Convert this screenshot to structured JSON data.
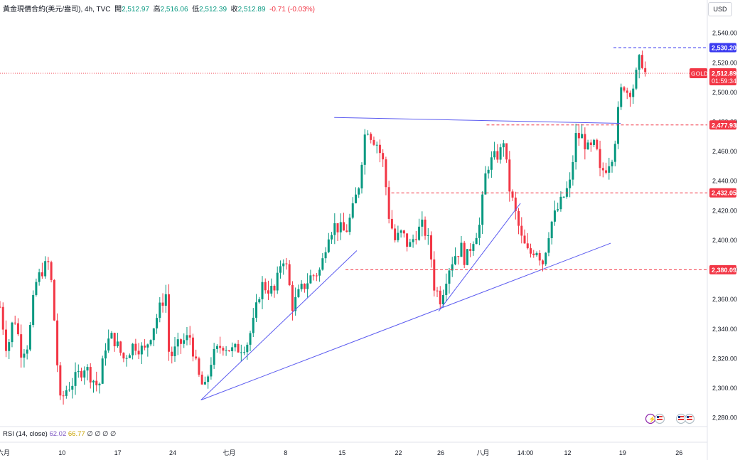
{
  "header": {
    "symbol": "黃金現價合約(美元/盎司)",
    "interval": "4h",
    "source": "TVC",
    "open_label": "開",
    "open": "2,512.97",
    "high_label": "高",
    "high": "2,516.06",
    "low_label": "低",
    "low": "2,512.39",
    "close_label": "收",
    "close": "2,512.89",
    "change": "-0.71 (-0.03%)"
  },
  "currency_button": "USD",
  "rsi": {
    "label": "RSI (14, close)",
    "value1": "62.02",
    "value2": "66.77",
    "dots": "∅ ∅ ∅ ∅"
  },
  "colors": {
    "up": "#089981",
    "down": "#f23645",
    "trend": "#5b5bf0",
    "price_tag": "#f23645",
    "high_tag": "#3c3cf0"
  },
  "icons": [
    "flash-icon",
    "us-flag-icon",
    "us-flag-icon",
    "us-flag-icon"
  ],
  "chart_data": {
    "type": "candlestick",
    "y_ticks": [
      "2,540.00",
      "2,520.00",
      "2,500.00",
      "2,480.00",
      "2,460.00",
      "2,440.00",
      "2,420.00",
      "2,400.00",
      "2,380.00",
      "2,360.00",
      "2,340.00",
      "2,320.00",
      "2,300.00",
      "2,280.00"
    ],
    "ylim": [
      2275,
      2548
    ],
    "x_ticks": [
      "六月",
      "10",
      "17",
      "24",
      "七月",
      "8",
      "15",
      "22",
      "26",
      "八月",
      "14:00",
      "12",
      "19",
      "26"
    ],
    "current_price": {
      "symbol": "GOLD",
      "value": 2512.89,
      "label": "2,512.89",
      "countdown": "01:59:34"
    },
    "levels": [
      {
        "value": 2530.2,
        "label": "2,530.20",
        "style": "high"
      },
      {
        "value": 2477.93,
        "label": "2,477.93",
        "style": "red"
      },
      {
        "value": 2432.05,
        "label": "2,432.05",
        "style": "red"
      },
      {
        "value": 2380.09,
        "label": "2,380.09",
        "style": "red"
      }
    ],
    "trendlines": [
      {
        "from": [
          0.285,
          2292
        ],
        "to": [
          0.506,
          2393
        ]
      },
      {
        "from": [
          0.285,
          2292
        ],
        "to": [
          0.866,
          2398
        ]
      },
      {
        "from": [
          0.622,
          2352
        ],
        "to": [
          0.738,
          2425
        ]
      },
      {
        "from": [
          0.474,
          2483
        ],
        "to": [
          0.88,
          2479
        ]
      }
    ],
    "close_path": [
      [
        0.0,
        2355
      ],
      [
        0.01,
        2325
      ],
      [
        0.02,
        2350
      ],
      [
        0.03,
        2325
      ],
      [
        0.04,
        2330
      ],
      [
        0.05,
        2370
      ],
      [
        0.06,
        2380
      ],
      [
        0.07,
        2385
      ],
      [
        0.075,
        2360
      ],
      [
        0.085,
        2290
      ],
      [
        0.095,
        2300
      ],
      [
        0.105,
        2305
      ],
      [
        0.12,
        2315
      ],
      [
        0.14,
        2300
      ],
      [
        0.15,
        2330
      ],
      [
        0.16,
        2335
      ],
      [
        0.175,
        2320
      ],
      [
        0.19,
        2330
      ],
      [
        0.205,
        2325
      ],
      [
        0.22,
        2345
      ],
      [
        0.235,
        2365
      ],
      [
        0.24,
        2320
      ],
      [
        0.255,
        2330
      ],
      [
        0.27,
        2335
      ],
      [
        0.28,
        2310
      ],
      [
        0.29,
        2298
      ],
      [
        0.3,
        2320
      ],
      [
        0.315,
        2330
      ],
      [
        0.33,
        2325
      ],
      [
        0.35,
        2330
      ],
      [
        0.36,
        2345
      ],
      [
        0.37,
        2370
      ],
      [
        0.39,
        2365
      ],
      [
        0.4,
        2390
      ],
      [
        0.405,
        2385
      ],
      [
        0.415,
        2355
      ],
      [
        0.425,
        2365
      ],
      [
        0.44,
        2375
      ],
      [
        0.455,
        2380
      ],
      [
        0.465,
        2405
      ],
      [
        0.475,
        2410
      ],
      [
        0.49,
        2405
      ],
      [
        0.5,
        2420
      ],
      [
        0.51,
        2440
      ],
      [
        0.515,
        2465
      ],
      [
        0.52,
        2478
      ],
      [
        0.525,
        2472
      ],
      [
        0.535,
        2465
      ],
      [
        0.545,
        2450
      ],
      [
        0.55,
        2420
      ],
      [
        0.56,
        2400
      ],
      [
        0.57,
        2405
      ],
      [
        0.58,
        2395
      ],
      [
        0.59,
        2405
      ],
      [
        0.6,
        2410
      ],
      [
        0.61,
        2395
      ],
      [
        0.615,
        2370
      ],
      [
        0.625,
        2360
      ],
      [
        0.635,
        2380
      ],
      [
        0.645,
        2390
      ],
      [
        0.655,
        2395
      ],
      [
        0.66,
        2385
      ],
      [
        0.67,
        2400
      ],
      [
        0.68,
        2410
      ],
      [
        0.69,
        2450
      ],
      [
        0.7,
        2455
      ],
      [
        0.71,
        2460
      ],
      [
        0.715,
        2470
      ],
      [
        0.72,
        2440
      ],
      [
        0.73,
        2420
      ],
      [
        0.74,
        2400
      ],
      [
        0.75,
        2390
      ],
      [
        0.76,
        2395
      ],
      [
        0.77,
        2385
      ],
      [
        0.78,
        2410
      ],
      [
        0.79,
        2420
      ],
      [
        0.8,
        2430
      ],
      [
        0.81,
        2440
      ],
      [
        0.815,
        2470
      ],
      [
        0.825,
        2470
      ],
      [
        0.835,
        2460
      ],
      [
        0.845,
        2465
      ],
      [
        0.85,
        2445
      ],
      [
        0.86,
        2450
      ],
      [
        0.87,
        2460
      ],
      [
        0.875,
        2480
      ],
      [
        0.88,
        2500
      ],
      [
        0.885,
        2505
      ],
      [
        0.89,
        2500
      ],
      [
        0.9,
        2505
      ],
      [
        0.905,
        2520
      ],
      [
        0.91,
        2522
      ],
      [
        0.915,
        2512.89
      ]
    ]
  }
}
